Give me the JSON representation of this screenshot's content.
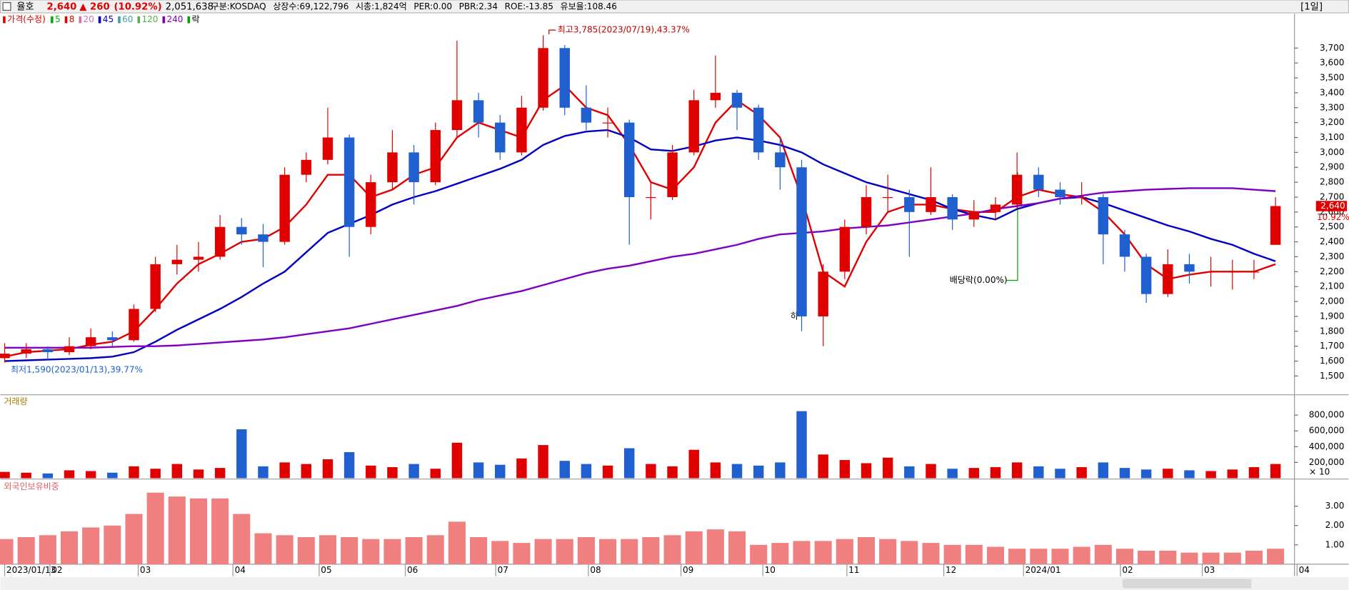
{
  "chart_data": {
    "type": "candlestick",
    "header": {
      "name": "율호",
      "price": "2,640",
      "change": "▲ 260",
      "change_pct": "(10.92%)",
      "volume": "2,051,638",
      "info": [
        "구분:KOSDAQ",
        "상장수:69,122,796",
        "시총:1,824억",
        "PER:0.00",
        "PBR:2.34",
        "ROE:-13.85",
        "유보율:108.46"
      ],
      "period": "[1일]"
    },
    "price_legend": "가격(수정)",
    "ex_legend": "락",
    "price_side_pct": "10.92%",
    "annotations": {
      "high": "최고3,785(2023/07/19),43.37%",
      "low": "최저1,590(2023/01/13),39.77%",
      "dividend": "배당락(0.00%)",
      "down": "하"
    },
    "up_color": "#e00000",
    "down_color": "#1f5fcf",
    "open": [
      1620,
      1650,
      1680,
      1660,
      1700,
      1760,
      1740,
      1950,
      2250,
      2280,
      2300,
      2500,
      2450,
      2400,
      2850,
      2950,
      3100,
      2500,
      2800,
      3000,
      2800,
      3150,
      3350,
      3200,
      3000,
      3300,
      3700,
      3300,
      3200,
      3200,
      2700,
      2700,
      3000,
      3350,
      3400,
      3300,
      3000,
      2900,
      1900,
      2200,
      2500,
      2700,
      2700,
      2600,
      2700,
      2550,
      2600,
      2650,
      2850,
      2750,
      2700,
      2700,
      2450,
      2300,
      2050,
      2250,
      2200,
      2200,
      2200,
      2380
    ],
    "high": [
      1720,
      1720,
      1700,
      1760,
      1820,
      1800,
      1980,
      2300,
      2380,
      2400,
      2580,
      2560,
      2520,
      2900,
      3000,
      3300,
      3120,
      2850,
      3150,
      3050,
      3200,
      3750,
      3400,
      3250,
      3380,
      3785,
      3720,
      3450,
      3300,
      3220,
      2800,
      3050,
      3420,
      3650,
      3420,
      3320,
      3100,
      2950,
      2250,
      2550,
      2780,
      2850,
      2750,
      2900,
      2720,
      2680,
      2700,
      3000,
      2900,
      2800,
      2800,
      2720,
      2480,
      2320,
      2350,
      2320,
      2300,
      2280,
      2280,
      2700
    ],
    "low": [
      1590,
      1620,
      1610,
      1640,
      1680,
      1700,
      1730,
      1930,
      2180,
      2200,
      2280,
      2380,
      2230,
      2380,
      2800,
      2920,
      2300,
      2450,
      2750,
      2650,
      2780,
      3100,
      3100,
      2950,
      2980,
      3280,
      3250,
      3150,
      3100,
      2380,
      2550,
      2680,
      2980,
      3300,
      3150,
      2950,
      2750,
      1800,
      1700,
      2150,
      2450,
      2600,
      2300,
      2580,
      2480,
      2500,
      2550,
      2620,
      2700,
      2650,
      2650,
      2250,
      2200,
      1990,
      2030,
      2120,
      2100,
      2080,
      2150,
      2380
    ],
    "close": [
      1650,
      1680,
      1660,
      1700,
      1760,
      1740,
      1950,
      2250,
      2280,
      2300,
      2500,
      2450,
      2400,
      2850,
      2950,
      3100,
      2500,
      2800,
      3000,
      2800,
      3150,
      3350,
      3200,
      3000,
      3300,
      3700,
      3300,
      3200,
      3200,
      2700,
      2700,
      3000,
      3350,
      3400,
      3300,
      3000,
      2900,
      1900,
      2200,
      2500,
      2700,
      2700,
      2600,
      2700,
      2550,
      2600,
      2650,
      2850,
      2750,
      2700,
      2700,
      2450,
      2300,
      2050,
      2250,
      2200,
      2200,
      2200,
      2200,
      2640
    ],
    "series": [
      {
        "name": "5",
        "color": "#00b000"
      },
      {
        "name": "8",
        "color": "#e00000",
        "width": 2,
        "values": [
          1630,
          1660,
          1670,
          1680,
          1710,
          1730,
          1800,
          1950,
          2120,
          2250,
          2320,
          2400,
          2420,
          2500,
          2650,
          2850,
          2850,
          2700,
          2750,
          2850,
          2900,
          3100,
          3200,
          3150,
          3100,
          3350,
          3450,
          3300,
          3250,
          3050,
          2800,
          2750,
          2900,
          3200,
          3350,
          3250,
          3100,
          2700,
          2200,
          2100,
          2400,
          2600,
          2650,
          2650,
          2620,
          2600,
          2600,
          2700,
          2750,
          2720,
          2700,
          2600,
          2450,
          2250,
          2150,
          2180,
          2200,
          2200,
          2200,
          2250
        ]
      },
      {
        "name": "20",
        "color": "#d070b0"
      },
      {
        "name": "45",
        "color": "#0000c0",
        "width": 2,
        "values": [
          1600,
          1605,
          1610,
          1615,
          1620,
          1630,
          1660,
          1730,
          1810,
          1880,
          1950,
          2030,
          2120,
          2200,
          2330,
          2460,
          2520,
          2580,
          2650,
          2700,
          2740,
          2790,
          2840,
          2890,
          2950,
          3050,
          3110,
          3140,
          3150,
          3100,
          3020,
          3010,
          3040,
          3080,
          3100,
          3080,
          3050,
          3000,
          2920,
          2860,
          2800,
          2760,
          2720,
          2680,
          2620,
          2580,
          2550,
          2620,
          2660,
          2690,
          2700,
          2660,
          2610,
          2560,
          2510,
          2470,
          2420,
          2380,
          2320,
          2270
        ]
      },
      {
        "name": "60",
        "color": "#40a0a0"
      },
      {
        "name": "120",
        "color": "#50b050"
      },
      {
        "name": "240",
        "color": "#8000c0",
        "width": 2,
        "values": [
          1690,
          1690,
          1690,
          1690,
          1690,
          1695,
          1700,
          1700,
          1705,
          1715,
          1725,
          1735,
          1745,
          1760,
          1780,
          1800,
          1820,
          1850,
          1880,
          1910,
          1940,
          1970,
          2010,
          2040,
          2070,
          2110,
          2150,
          2190,
          2220,
          2240,
          2270,
          2300,
          2320,
          2350,
          2380,
          2420,
          2450,
          2460,
          2470,
          2490,
          2500,
          2510,
          2530,
          2550,
          2570,
          2590,
          2620,
          2640,
          2660,
          2690,
          2710,
          2730,
          2740,
          2750,
          2755,
          2760,
          2760,
          2760,
          2750,
          2740
        ]
      }
    ],
    "ylim": [
      1380,
      3930
    ],
    "yticks": [
      {
        "value": 1500,
        "label": "1,500"
      },
      {
        "value": 1600,
        "label": "1,600"
      },
      {
        "value": 1700,
        "label": "1,700"
      },
      {
        "value": 1800,
        "label": "1,800"
      },
      {
        "value": 1900,
        "label": "1,900"
      },
      {
        "value": 2000,
        "label": "2,000"
      },
      {
        "value": 2100,
        "label": "2,100"
      },
      {
        "value": 2200,
        "label": "2,200"
      },
      {
        "value": 2300,
        "label": "2,300"
      },
      {
        "value": 2400,
        "label": "2,400"
      },
      {
        "value": 2500,
        "label": "2,500"
      },
      {
        "value": 2600,
        "label": "2,600"
      },
      {
        "value": 2700,
        "label": "2,700"
      },
      {
        "value": 2800,
        "label": "2,800"
      },
      {
        "value": 2900,
        "label": "2,900"
      },
      {
        "value": 3000,
        "label": "3,000"
      },
      {
        "value": 3100,
        "label": "3,100"
      },
      {
        "value": 3200,
        "label": "3,200"
      },
      {
        "value": 3300,
        "label": "3,300"
      },
      {
        "value": 3400,
        "label": "3,400"
      },
      {
        "value": 3500,
        "label": "3,500"
      },
      {
        "value": 3600,
        "label": "3,600"
      },
      {
        "value": 3700,
        "label": "3,700"
      }
    ],
    "volume": {
      "title": "거래량",
      "unit_note": "× 10",
      "ylim": [
        0,
        1025000
      ],
      "yticks": [
        {
          "value": 200000,
          "label": "200,000"
        },
        {
          "value": 400000,
          "label": "400,000"
        },
        {
          "value": 600000,
          "label": "600,000"
        },
        {
          "value": 800000,
          "label": "800,000"
        }
      ],
      "values": [
        80000,
        70000,
        60000,
        100000,
        90000,
        70000,
        150000,
        120000,
        180000,
        110000,
        130000,
        620000,
        150000,
        200000,
        180000,
        240000,
        330000,
        160000,
        140000,
        180000,
        120000,
        450000,
        200000,
        170000,
        250000,
        420000,
        220000,
        180000,
        160000,
        380000,
        180000,
        150000,
        360000,
        200000,
        180000,
        160000,
        200000,
        850000,
        300000,
        230000,
        190000,
        260000,
        150000,
        180000,
        120000,
        130000,
        140000,
        200000,
        150000,
        120000,
        140000,
        200000,
        130000,
        110000,
        120000,
        100000,
        90000,
        110000,
        140000,
        180000
      ]
    },
    "foreign": {
      "title": "외국인보유비중",
      "color": "#f08080",
      "ylim": [
        0,
        4.27
      ],
      "yticks": [
        {
          "value": 1,
          "label": "1.00"
        },
        {
          "value": 2,
          "label": "2.00"
        },
        {
          "value": 3,
          "label": "3.00"
        }
      ],
      "values": [
        1.3,
        1.4,
        1.5,
        1.7,
        1.9,
        2.0,
        2.6,
        3.7,
        3.5,
        3.4,
        3.4,
        2.6,
        1.6,
        1.5,
        1.4,
        1.5,
        1.4,
        1.3,
        1.3,
        1.4,
        1.5,
        2.2,
        1.4,
        1.2,
        1.1,
        1.3,
        1.3,
        1.4,
        1.3,
        1.3,
        1.4,
        1.5,
        1.7,
        1.8,
        1.7,
        1.0,
        1.1,
        1.2,
        1.2,
        1.3,
        1.4,
        1.3,
        1.2,
        1.1,
        1.0,
        1.0,
        0.9,
        0.8,
        0.8,
        0.8,
        0.9,
        1.0,
        0.8,
        0.7,
        0.7,
        0.6,
        0.6,
        0.6,
        0.7,
        0.8
      ]
    },
    "x_labels": [
      {
        "value": 0,
        "label": "2023/01/13"
      },
      {
        "value": 2.1,
        "label": "02"
      },
      {
        "value": 6.2,
        "label": "03"
      },
      {
        "value": 10.6,
        "label": "04"
      },
      {
        "value": 14.6,
        "label": "05"
      },
      {
        "value": 18.6,
        "label": "06"
      },
      {
        "value": 22.8,
        "label": "07"
      },
      {
        "value": 27.1,
        "label": "08"
      },
      {
        "value": 31.4,
        "label": "09"
      },
      {
        "value": 35.2,
        "label": "10"
      },
      {
        "value": 39.1,
        "label": "11"
      },
      {
        "value": 43.6,
        "label": "12"
      },
      {
        "value": 47.3,
        "label": "2024/01"
      },
      {
        "value": 51.8,
        "label": "02"
      },
      {
        "value": 55.6,
        "label": "03"
      },
      {
        "value": 60,
        "label": "04"
      }
    ]
  }
}
